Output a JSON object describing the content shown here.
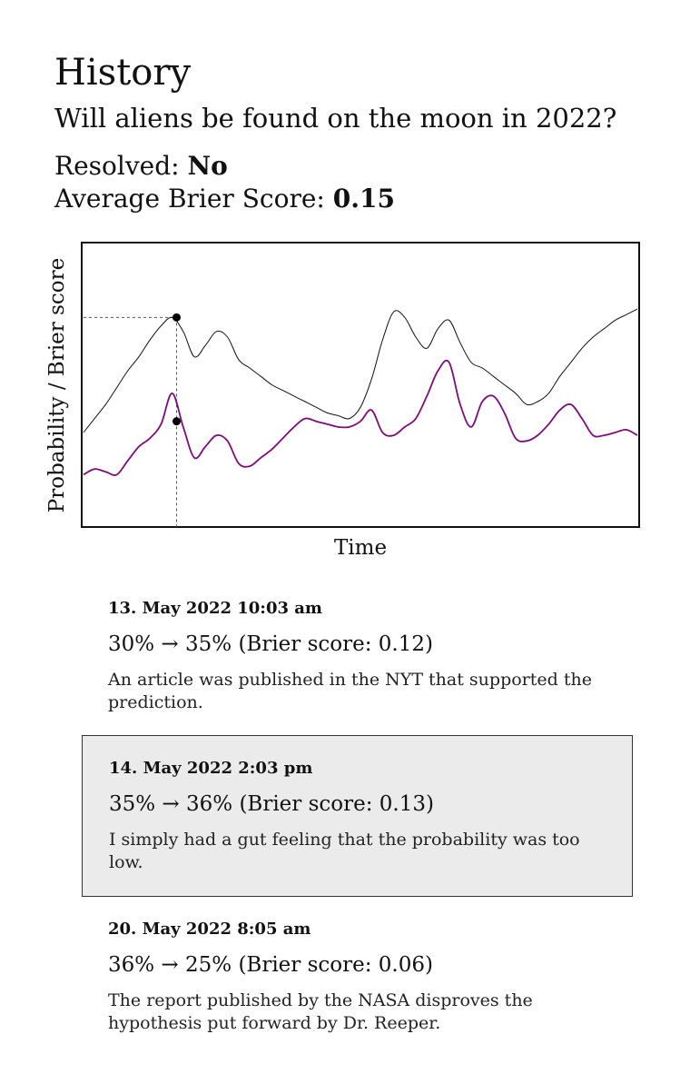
{
  "header": {
    "title": "History",
    "question": "Will aliens be found on the moon in 2022?",
    "resolved_label": "Resolved: ",
    "resolved_value": "No",
    "brier_label": "Average Brier Score: ",
    "brier_value": "0.15"
  },
  "chart_data": {
    "type": "line",
    "xlabel": "Time",
    "ylabel": "Probability / Brier score",
    "grid": false,
    "legend": "none",
    "series": [
      {
        "color": "#111111",
        "x": [
          0,
          2,
          4,
          6,
          8,
          10,
          12,
          14,
          16,
          18,
          20,
          22,
          24,
          26,
          28,
          30,
          32,
          34,
          36,
          38,
          40,
          42,
          44,
          46,
          48,
          50,
          52,
          54,
          56,
          58,
          60,
          62,
          64,
          66,
          68,
          70,
          72,
          74,
          76,
          78,
          80,
          82,
          84,
          86,
          88,
          90,
          92,
          94,
          96,
          98,
          100
        ],
        "values": [
          0.33,
          0.38,
          0.43,
          0.49,
          0.55,
          0.6,
          0.66,
          0.71,
          0.74,
          0.69,
          0.6,
          0.64,
          0.69,
          0.67,
          0.59,
          0.56,
          0.53,
          0.5,
          0.48,
          0.46,
          0.44,
          0.42,
          0.4,
          0.39,
          0.38,
          0.42,
          0.52,
          0.66,
          0.76,
          0.74,
          0.67,
          0.63,
          0.7,
          0.73,
          0.65,
          0.58,
          0.56,
          0.53,
          0.5,
          0.47,
          0.43,
          0.44,
          0.47,
          0.53,
          0.58,
          0.63,
          0.67,
          0.7,
          0.73,
          0.75,
          0.77
        ]
      },
      {
        "color": "#7a0f75",
        "x": [
          0,
          2,
          4,
          6,
          8,
          10,
          12,
          14,
          16,
          18,
          20,
          22,
          24,
          26,
          28,
          30,
          32,
          34,
          36,
          38,
          40,
          42,
          44,
          46,
          48,
          50,
          52,
          54,
          56,
          58,
          60,
          62,
          64,
          66,
          68,
          70,
          72,
          74,
          76,
          78,
          80,
          82,
          84,
          86,
          88,
          90,
          92,
          94,
          96,
          98,
          100
        ],
        "values": [
          0.18,
          0.2,
          0.19,
          0.18,
          0.23,
          0.28,
          0.31,
          0.36,
          0.47,
          0.35,
          0.24,
          0.28,
          0.32,
          0.3,
          0.22,
          0.21,
          0.24,
          0.27,
          0.31,
          0.35,
          0.38,
          0.37,
          0.36,
          0.35,
          0.35,
          0.37,
          0.41,
          0.33,
          0.32,
          0.35,
          0.38,
          0.46,
          0.55,
          0.58,
          0.43,
          0.35,
          0.44,
          0.46,
          0.4,
          0.31,
          0.3,
          0.32,
          0.36,
          0.41,
          0.43,
          0.38,
          0.32,
          0.32,
          0.33,
          0.34,
          0.32
        ]
      }
    ],
    "markers": [
      {
        "x": 16.8,
        "y": 0.74
      },
      {
        "x": 16.8,
        "y": 0.37
      }
    ],
    "ylim": [
      0,
      1
    ],
    "xlim": [
      0,
      100
    ]
  },
  "entries": [
    {
      "date": "13. May 2022 10:03 am",
      "change": "30% → 35% (Brier score: 0.12)",
      "note": "An article was published in the NYT that supported the prediction."
    },
    {
      "date": "14. May 2022 2:03 pm",
      "change": "35% → 36% (Brier score: 0.13)",
      "note": "I simply had a gut feeling that the probability was too low."
    },
    {
      "date": "20. May 2022 8:05 am",
      "change": "36% → 25% (Brier score: 0.06)",
      "note": "The report published by the NASA disproves the hypothesis put forward by Dr. Reeper."
    }
  ]
}
